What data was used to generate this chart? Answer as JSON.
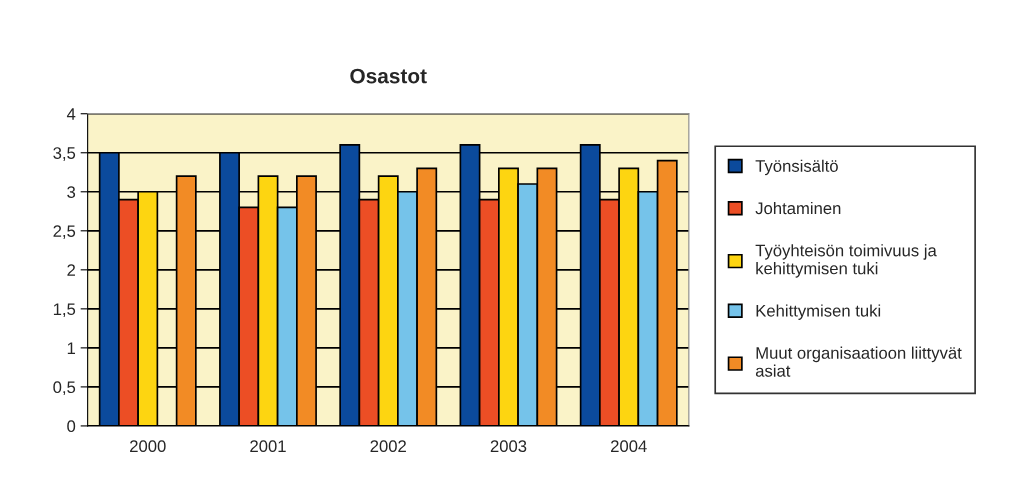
{
  "chart_data": {
    "type": "bar",
    "title": "Osastot",
    "categories": [
      "2000",
      "2001",
      "2002",
      "2003",
      "2004"
    ],
    "series": [
      {
        "name": "Työnsisältö",
        "color": "#0b4a9c",
        "values": [
          3.5,
          3.5,
          3.6,
          3.6,
          3.6
        ]
      },
      {
        "name": "Johtaminen",
        "color": "#ec4e25",
        "values": [
          2.9,
          2.8,
          2.9,
          2.9,
          2.9
        ]
      },
      {
        "name": "Työyhteisön toimivuus ja\nkehittymisen tuki",
        "color": "#fdd511",
        "values": [
          3.0,
          3.2,
          3.2,
          3.3,
          3.3
        ]
      },
      {
        "name": "Kehittymisen tuki",
        "color": "#75c3ea",
        "values": [
          null,
          2.8,
          3.0,
          3.1,
          3.0
        ]
      },
      {
        "name": "Muut organisaatioon liittyvät\nasiat",
        "color": "#f28b25",
        "values": [
          3.2,
          3.2,
          3.3,
          3.3,
          3.4
        ]
      }
    ],
    "ylim": [
      0,
      4
    ],
    "yticks": [
      0,
      {
        "value": 0.5,
        "label": "0,5"
      },
      1,
      {
        "value": 1.5,
        "label": "1,5"
      },
      2,
      {
        "value": 2.5,
        "label": "2,5"
      },
      3,
      {
        "value": 3.5,
        "label": "3,5"
      },
      4
    ],
    "grid": "y",
    "legend": "right"
  }
}
